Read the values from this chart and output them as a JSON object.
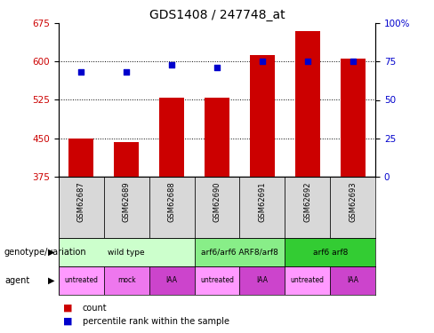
{
  "title": "GDS1408 / 247748_at",
  "samples": [
    "GSM62687",
    "GSM62689",
    "GSM62688",
    "GSM62690",
    "GSM62691",
    "GSM62692",
    "GSM62693"
  ],
  "bar_values": [
    450,
    443,
    530,
    530,
    612,
    660,
    606
  ],
  "scatter_values": [
    68,
    68,
    73,
    71,
    75,
    75,
    75
  ],
  "ylim_left": [
    375,
    675
  ],
  "ylim_right": [
    0,
    100
  ],
  "yticks_left": [
    375,
    450,
    525,
    600,
    675
  ],
  "yticks_right": [
    0,
    25,
    50,
    75,
    100
  ],
  "bar_color": "#cc0000",
  "scatter_color": "#0000cc",
  "genotype_groups": [
    {
      "label": "wild type",
      "span": [
        0,
        3
      ],
      "color": "#ccffcc"
    },
    {
      "label": "arf6/arf6 ARF8/arf8",
      "span": [
        3,
        5
      ],
      "color": "#88ee88"
    },
    {
      "label": "arf6 arf8",
      "span": [
        5,
        7
      ],
      "color": "#33cc33"
    }
  ],
  "agent_items": [
    {
      "label": "untreated",
      "color": "#ff99ff"
    },
    {
      "label": "mock",
      "color": "#ee77ee"
    },
    {
      "label": "IAA",
      "color": "#cc44cc"
    },
    {
      "label": "untreated",
      "color": "#ff99ff"
    },
    {
      "label": "IAA",
      "color": "#cc44cc"
    },
    {
      "label": "untreated",
      "color": "#ff99ff"
    },
    {
      "label": "IAA",
      "color": "#cc44cc"
    }
  ],
  "legend_count_color": "#cc0000",
  "legend_scatter_color": "#0000cc",
  "title_fontsize": 10
}
